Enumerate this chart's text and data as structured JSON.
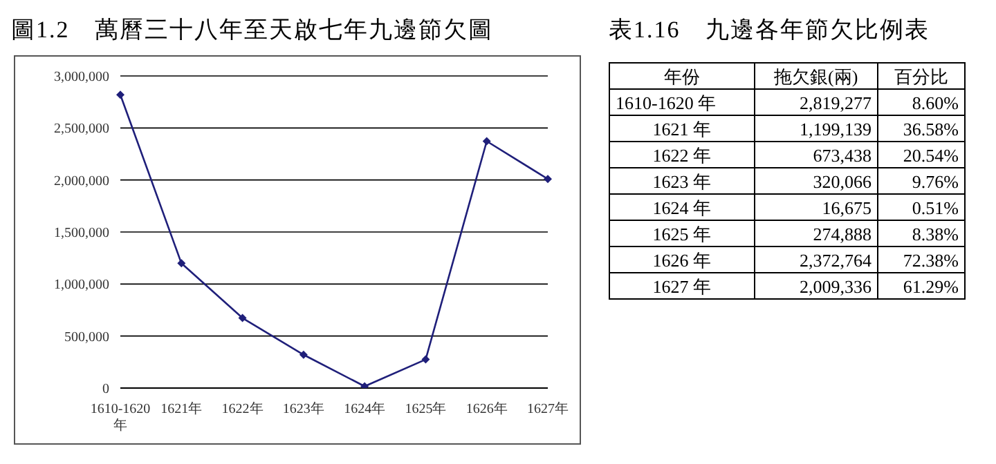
{
  "chart_data": {
    "type": "line",
    "title": "圖1.2　萬曆三十八年至天啟七年九邊節欠圖",
    "categories": [
      "1610-1620年",
      "1621年",
      "1622年",
      "1623年",
      "1624年",
      "1625年",
      "1626年",
      "1627年"
    ],
    "series": [
      {
        "color": "#1f1f7a",
        "values": [
          2819277,
          1199139,
          673438,
          320066,
          16675,
          274888,
          2372764,
          2009336
        ]
      }
    ],
    "ylim": [
      0,
      3000000
    ],
    "yticks": [
      {
        "value": 0,
        "label": "0"
      },
      {
        "value": 500000,
        "label": "500,000"
      },
      {
        "value": 1000000,
        "label": "1,000,000"
      },
      {
        "value": 1500000,
        "label": "1,500,000"
      },
      {
        "value": 2000000,
        "label": "2,000,000"
      },
      {
        "value": 2500000,
        "label": "2,500,000"
      },
      {
        "value": 3000000,
        "label": "3,000,000"
      }
    ],
    "grid": "y",
    "marker": "diamond",
    "line_style": "solid",
    "annotations": [
      "表1.16　九邊各年節欠比例表",
      "年份",
      "拖欠銀(兩)",
      "百分比",
      "1610-1620 年",
      "2,819,277",
      "8.60%",
      "1621 年",
      "1,199,139",
      "36.58%",
      "1622 年",
      "673,438",
      "20.54%",
      "1623 年",
      "320,066",
      "9.76%",
      "1624 年",
      "16,675",
      "0.51%",
      "1625 年",
      "274,888",
      "8.38%",
      "1626 年",
      "2,372,764",
      "72.38%",
      "1627 年",
      "2,009,336",
      "61.29%"
    ]
  }
}
